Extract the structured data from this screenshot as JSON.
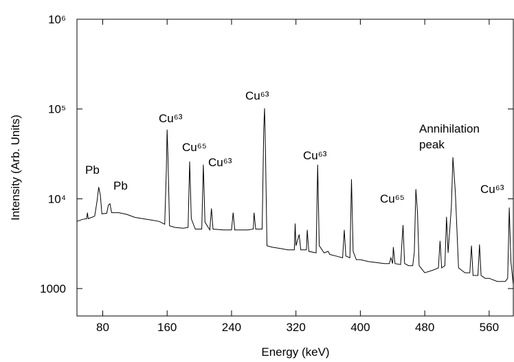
{
  "chart_data": {
    "type": "line",
    "x_label": "Energy (keV)",
    "y_label": "Intensity (Arb. Units)",
    "log_y": true,
    "color": "#000000",
    "xlim": [
      48,
      590
    ],
    "xticks": [
      80,
      160,
      240,
      320,
      400,
      480,
      560
    ],
    "ylim": [
      495,
      1000000
    ],
    "yticks": [
      1000,
      {
        "value": 10000,
        "label": "10⁴"
      },
      {
        "value": 100000,
        "label": "10⁵"
      },
      {
        "value": 1000000,
        "label": "10⁶"
      }
    ],
    "annotations": [
      "Pb",
      "Pb",
      "Cu⁶³",
      "Cu⁶⁵",
      "Cu⁶³",
      "Cu⁶³",
      "Cu⁶³",
      "Cu⁶⁵",
      "Annihilation",
      "peak",
      "Cu⁶³"
    ],
    "x": [
      48,
      55,
      60,
      61,
      62,
      70,
      73,
      75,
      77,
      79,
      85,
      87,
      89,
      91,
      100,
      110,
      120,
      130,
      140,
      150,
      157,
      159,
      160,
      161,
      163,
      170,
      180,
      186,
      188,
      190,
      195,
      203,
      205,
      207,
      213,
      215,
      217,
      230,
      240,
      242,
      244,
      260,
      267,
      268,
      270,
      278,
      280,
      281,
      282,
      284,
      290,
      300,
      310,
      318,
      319,
      320,
      324,
      326,
      333,
      334,
      336,
      345,
      347,
      349,
      355,
      360,
      362,
      370,
      378,
      380,
      382,
      387,
      389,
      391,
      395,
      400,
      410,
      420,
      430,
      436,
      438,
      440,
      441,
      443,
      450,
      453,
      455,
      460,
      465,
      467,
      469,
      471,
      473,
      480,
      490,
      497,
      499,
      501,
      505,
      507,
      509,
      513,
      515,
      518,
      522,
      530,
      536,
      538,
      540,
      546,
      548,
      550,
      555,
      560,
      570,
      580,
      583,
      585,
      587,
      590
    ],
    "values": [
      5600,
      5900,
      6000,
      7000,
      6000,
      6400,
      9500,
      13500,
      11000,
      6800,
      6900,
      8500,
      8800,
      7000,
      7000,
      6700,
      6200,
      6000,
      5800,
      5600,
      5200,
      20000,
      59000,
      30000,
      5000,
      4800,
      4700,
      4800,
      26000,
      6000,
      4600,
      4600,
      24000,
      5500,
      4500,
      7800,
      4600,
      4500,
      4500,
      7000,
      4500,
      4500,
      4600,
      7000,
      4600,
      4600,
      60000,
      102000,
      40000,
      3000,
      2900,
      2800,
      2700,
      2700,
      5300,
      3000,
      4000,
      2700,
      2700,
      4500,
      2600,
      2500,
      24000,
      3000,
      2500,
      2600,
      2400,
      2300,
      2200,
      4500,
      2300,
      2200,
      16500,
      2600,
      2100,
      2100,
      2000,
      1950,
      1900,
      1900,
      2200,
      1900,
      2900,
      1900,
      1850,
      5100,
      1900,
      1800,
      1800,
      2500,
      12800,
      7000,
      1800,
      1500,
      1600,
      1700,
      3400,
      1700,
      1800,
      6300,
      2500,
      8000,
      29000,
      12000,
      1700,
      1500,
      1500,
      3000,
      1400,
      1400,
      3100,
      1400,
      1300,
      1300,
      1200,
      1200,
      1300,
      8000,
      2000,
      1100
    ]
  }
}
